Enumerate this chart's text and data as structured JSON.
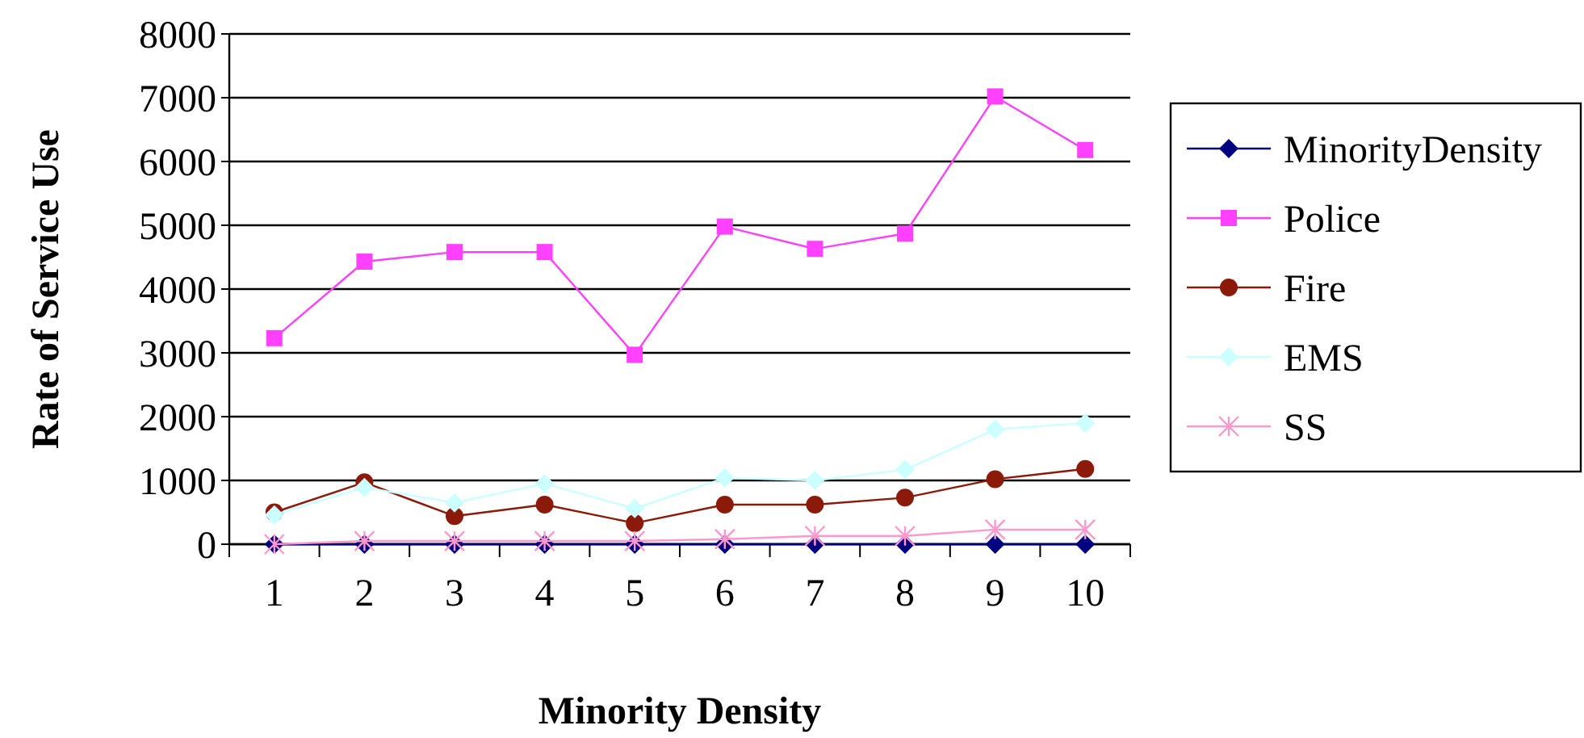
{
  "chart_data": {
    "type": "line",
    "xlabel": "Minority Density",
    "ylabel": "Rate of Service Use",
    "categories": [
      "1",
      "2",
      "3",
      "4",
      "5",
      "6",
      "7",
      "8",
      "9",
      "10"
    ],
    "ylim": [
      0,
      8000
    ],
    "yticks": [
      0,
      1000,
      2000,
      3000,
      4000,
      5000,
      6000,
      7000,
      8000
    ],
    "grid": "y",
    "legend": "right",
    "series": [
      {
        "name": "MinorityDensity",
        "color": "#000080",
        "marker": "diamond",
        "values": [
          0,
          0,
          0,
          0,
          0,
          0,
          0,
          0,
          0,
          0
        ]
      },
      {
        "name": "Police",
        "color": "#ff40ff",
        "marker": "square",
        "values": [
          3230,
          4430,
          4580,
          4580,
          2970,
          4980,
          4630,
          4870,
          7020,
          6180
        ]
      },
      {
        "name": "Fire",
        "color": "#8b1a0a",
        "marker": "circle",
        "values": [
          500,
          970,
          440,
          620,
          330,
          620,
          620,
          730,
          1020,
          1180
        ]
      },
      {
        "name": "EMS",
        "color": "#ccffff",
        "marker": "diamond",
        "values": [
          460,
          890,
          650,
          950,
          560,
          1040,
          1000,
          1170,
          1800,
          1900
        ]
      },
      {
        "name": "SS",
        "color": "#ff99cc",
        "marker": "cross",
        "values": [
          0,
          50,
          50,
          50,
          50,
          80,
          130,
          130,
          230,
          230
        ]
      }
    ]
  }
}
